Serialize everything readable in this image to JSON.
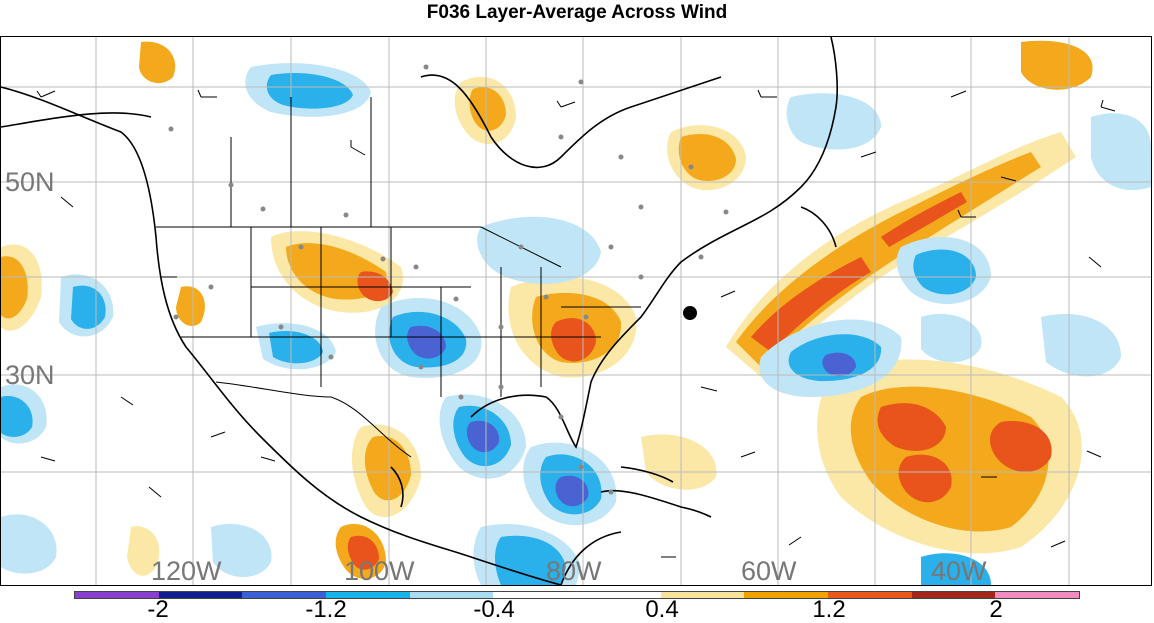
{
  "title": "F036 Layer-Average Across Wind",
  "lat_labels": [
    "50N",
    "30N"
  ],
  "lon_labels": [
    "120W",
    "100W",
    "80W",
    "60W",
    "40W"
  ],
  "colorbar": {
    "colors": [
      "#8b3fd1",
      "#101f8f",
      "#3a5fd6",
      "#14b4ea",
      "#a9dcf3",
      "#ffffff",
      "#ffffff",
      "#f9e29c",
      "#f3a300",
      "#e85a1a",
      "#a4261a",
      "#f08cc0"
    ],
    "labels": [
      "-2",
      "-1.2",
      "-0.4",
      "0.4",
      "1.2",
      "2"
    ]
  },
  "legend_colors": {
    "neg_light": "#bfe5f7",
    "neg_mid": "#2ab0ea",
    "neg_strong": "#4a62d2",
    "pos_light": "#fbe7a6",
    "pos_mid": "#f3a91b",
    "pos_strong": "#e8541b",
    "coast": "#000000",
    "grid": "#bbbbbb",
    "station": "#888888"
  },
  "marker": "black-dot"
}
